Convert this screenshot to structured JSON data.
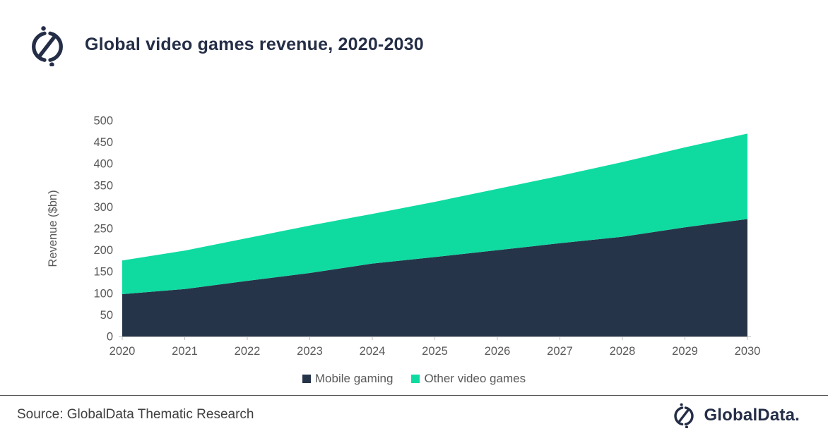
{
  "header": {
    "title": "Global video games revenue, 2020-2030",
    "logo_icon": "globaldata-circle-slash-icon"
  },
  "chart_data": {
    "type": "area",
    "stacked": true,
    "title": "Global video games revenue, 2020-2030",
    "xlabel": "",
    "ylabel": "Revenue ($bn)",
    "ylim": [
      0,
      500
    ],
    "yticks": [
      0,
      50,
      100,
      150,
      200,
      250,
      300,
      350,
      400,
      450,
      500
    ],
    "categories": [
      "2020",
      "2021",
      "2022",
      "2023",
      "2024",
      "2025",
      "2026",
      "2027",
      "2028",
      "2029",
      "2030"
    ],
    "series": [
      {
        "name": "Mobile gaming",
        "color": "#263449",
        "values": [
          98,
          110,
          129,
          147,
          169,
          184,
          200,
          216,
          231,
          253,
          272
        ]
      },
      {
        "name": "Other video games",
        "color": "#0fdba1",
        "values": [
          78,
          89,
          99,
          110,
          115,
          128,
          142,
          156,
          173,
          185,
          198
        ]
      }
    ],
    "stacked_totals": [
      176,
      199,
      228,
      257,
      284,
      312,
      342,
      372,
      404,
      438,
      470
    ],
    "legend_position": "bottom",
    "grid": false,
    "axis_color": "#bfbfbf",
    "label_color": "#595959"
  },
  "footer": {
    "source": "Source: GlobalData Thematic Research",
    "brand": "GlobalData."
  }
}
